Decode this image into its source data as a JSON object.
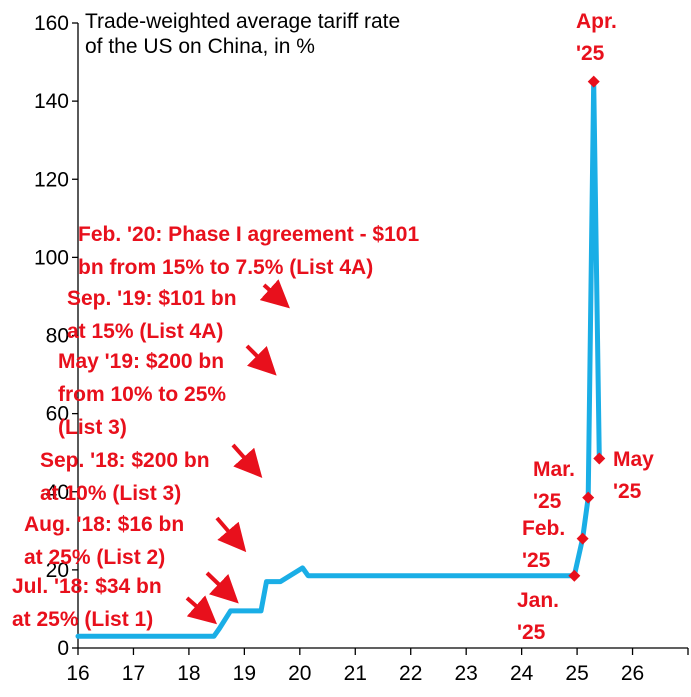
{
  "chart_data": {
    "type": "line",
    "title_lines": [
      "Trade-weighted average tariff rate",
      "of the US on China, in %"
    ],
    "xlabel": "",
    "ylabel": "",
    "xlim": [
      16,
      27
    ],
    "ylim": [
      0,
      160
    ],
    "x_ticks": [
      16,
      17,
      18,
      19,
      20,
      21,
      22,
      23,
      24,
      25,
      26
    ],
    "y_ticks": [
      0,
      20,
      40,
      60,
      80,
      100,
      120,
      140,
      160
    ],
    "colors": {
      "line": "#1aaee6",
      "annotation": "#e8101c",
      "axis": "#000000"
    },
    "series": [
      {
        "name": "Trade-weighted average tariff rate",
        "x": [
          16,
          18.45,
          18.55,
          18.75,
          19.3,
          19.4,
          19.65,
          20.05,
          20.15,
          24.95,
          25.1,
          25.2,
          25.3,
          25.4
        ],
        "y": [
          3,
          3,
          5,
          9.5,
          9.5,
          17,
          17,
          20.5,
          18.5,
          18.5,
          28,
          38.5,
          145,
          48.5
        ]
      }
    ],
    "markers": [
      {
        "x": 24.95,
        "y": 18.5
      },
      {
        "x": 25.1,
        "y": 28
      },
      {
        "x": 25.2,
        "y": 38.5
      },
      {
        "x": 25.3,
        "y": 145
      },
      {
        "x": 25.4,
        "y": 48.5
      }
    ],
    "annotations": [
      {
        "lines": [
          "Feb. '20: Phase I agreement - $101",
          "bn from 15% to 7.5% (List 4A)"
        ]
      },
      {
        "lines": [
          "Sep. '19: $101 bn",
          "at 15% (List 4A)"
        ]
      },
      {
        "lines": [
          "May '19: $200 bn",
          "from 10% to 25%",
          "(List 3)"
        ]
      },
      {
        "lines": [
          "Sep. '18: $200 bn",
          "at 10% (List 3)"
        ]
      },
      {
        "lines": [
          "Aug. '18: $16 bn",
          "at 25% (List 2)"
        ]
      },
      {
        "lines": [
          "Jul. '18: $34 bn",
          "at 25% (List 1)"
        ]
      },
      {
        "lines": [
          "Apr.",
          "'25"
        ]
      },
      {
        "lines": [
          "Mar.",
          "'25"
        ]
      },
      {
        "lines": [
          "Feb.",
          "'25"
        ]
      },
      {
        "lines": [
          "Jan.",
          "'25"
        ]
      },
      {
        "lines": [
          "May",
          "'25"
        ]
      }
    ]
  }
}
